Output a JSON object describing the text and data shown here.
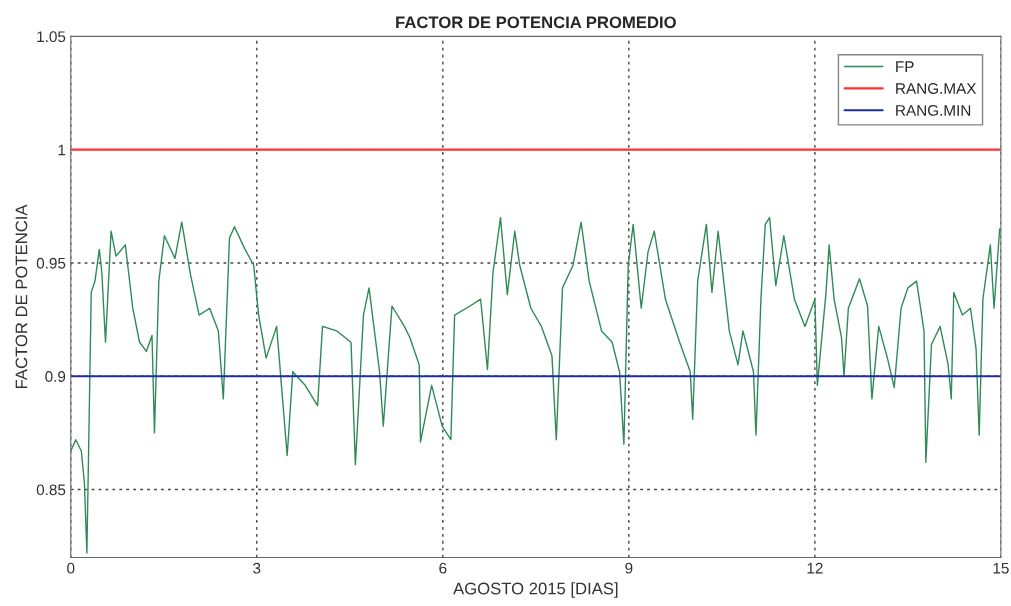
{
  "chart_data": {
    "type": "line",
    "title": "FACTOR DE POTENCIA PROMEDIO",
    "xlabel": "AGOSTO 2015 [DIAS]",
    "ylabel": "FACTOR DE POTENCIA",
    "xlim": [
      0,
      15
    ],
    "xticks": [
      0,
      3,
      6,
      9,
      12,
      15
    ],
    "ylim": [
      0.82,
      1.05
    ],
    "yticks": [
      0.85,
      0.9,
      0.95,
      1,
      1.05
    ],
    "grid": true,
    "legend": "top right",
    "series": [
      {
        "name": "FP",
        "color": "#2e8b57",
        "x": [
          0.0,
          0.08,
          0.17,
          0.22,
          0.26,
          0.29,
          0.33,
          0.39,
          0.46,
          0.5,
          0.56,
          0.65,
          0.73,
          0.88,
          1.0,
          1.11,
          1.22,
          1.31,
          1.35,
          1.42,
          1.51,
          1.68,
          1.79,
          1.93,
          2.07,
          2.24,
          2.38,
          2.46,
          2.56,
          2.64,
          2.81,
          2.95,
          3.03,
          3.15,
          3.32,
          3.49,
          3.58,
          3.78,
          3.98,
          4.06,
          4.29,
          4.52,
          4.59,
          4.72,
          4.81,
          4.98,
          5.04,
          5.18,
          5.38,
          5.47,
          5.62,
          5.64,
          5.82,
          5.99,
          6.13,
          6.19,
          6.44,
          6.61,
          6.72,
          6.81,
          6.93,
          7.04,
          7.16,
          7.24,
          7.42,
          7.59,
          7.76,
          7.83,
          7.93,
          8.1,
          8.23,
          8.36,
          8.56,
          8.73,
          8.85,
          8.92,
          8.99,
          9.07,
          9.2,
          9.31,
          9.41,
          9.59,
          9.82,
          9.99,
          10.03,
          10.11,
          10.25,
          10.34,
          10.44,
          10.62,
          10.76,
          10.84,
          11.01,
          11.05,
          11.13,
          11.2,
          11.27,
          11.37,
          11.5,
          11.67,
          11.84,
          12.0,
          12.04,
          12.18,
          12.23,
          12.31,
          12.43,
          12.47,
          12.54,
          12.72,
          12.85,
          12.92,
          13.03,
          13.17,
          13.28,
          13.39,
          13.5,
          13.64,
          13.76,
          13.79,
          13.88,
          14.02,
          14.15,
          14.2,
          14.24,
          14.38,
          14.51,
          14.6,
          14.65,
          14.71,
          14.83,
          14.89,
          14.98
        ],
        "values": [
          0.867,
          0.872,
          0.867,
          0.853,
          0.822,
          0.871,
          0.937,
          0.942,
          0.956,
          0.946,
          0.915,
          0.964,
          0.953,
          0.958,
          0.93,
          0.915,
          0.911,
          0.918,
          0.875,
          0.942,
          0.962,
          0.952,
          0.968,
          0.945,
          0.927,
          0.93,
          0.92,
          0.89,
          0.961,
          0.966,
          0.956,
          0.949,
          0.927,
          0.908,
          0.922,
          0.865,
          0.902,
          0.896,
          0.887,
          0.922,
          0.92,
          0.915,
          0.861,
          0.927,
          0.939,
          0.902,
          0.878,
          0.931,
          0.922,
          0.917,
          0.905,
          0.871,
          0.896,
          0.878,
          0.872,
          0.927,
          0.931,
          0.934,
          0.903,
          0.946,
          0.97,
          0.936,
          0.964,
          0.949,
          0.93,
          0.922,
          0.909,
          0.872,
          0.939,
          0.949,
          0.968,
          0.942,
          0.92,
          0.915,
          0.902,
          0.87,
          0.949,
          0.967,
          0.93,
          0.955,
          0.964,
          0.934,
          0.915,
          0.902,
          0.881,
          0.942,
          0.967,
          0.937,
          0.964,
          0.92,
          0.905,
          0.92,
          0.902,
          0.874,
          0.934,
          0.967,
          0.97,
          0.94,
          0.962,
          0.934,
          0.922,
          0.934,
          0.896,
          0.937,
          0.958,
          0.934,
          0.917,
          0.9,
          0.93,
          0.943,
          0.931,
          0.89,
          0.922,
          0.908,
          0.895,
          0.93,
          0.939,
          0.942,
          0.92,
          0.862,
          0.914,
          0.922,
          0.905,
          0.89,
          0.937,
          0.927,
          0.93,
          0.912,
          0.874,
          0.934,
          0.958,
          0.93,
          0.965
        ]
      },
      {
        "name": "RANG.MAX",
        "color": "#ff3333",
        "x": [
          0,
          15
        ],
        "values": [
          1,
          1
        ]
      },
      {
        "name": "RANG.MIN",
        "color": "#1f2f9f",
        "x": [
          0,
          15
        ],
        "values": [
          0.9,
          0.9
        ]
      }
    ]
  }
}
